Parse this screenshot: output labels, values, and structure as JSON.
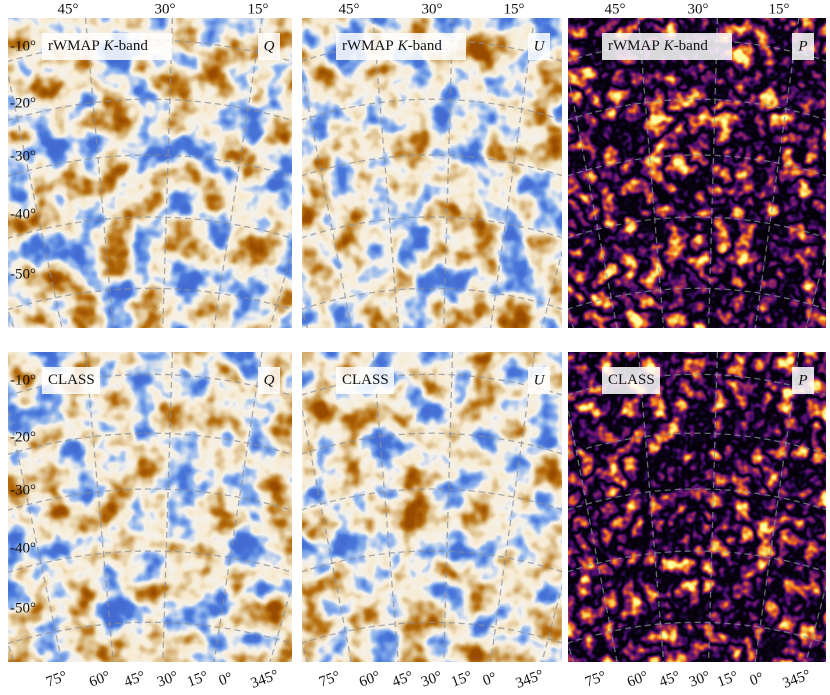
{
  "top_axis_labels": [
    "45°",
    "30°",
    "15°"
  ],
  "left_axis_labels": [
    "-10°",
    "-20°",
    "-30°",
    "-40°",
    "-50°"
  ],
  "bottom_axis_labels": [
    "75°",
    "60°",
    "45°",
    "30°",
    "15°",
    "0°",
    "345°"
  ],
  "panels": [
    {
      "source": "rWMAP",
      "band": "K",
      "band_suffix": "-band",
      "stokes": "Q"
    },
    {
      "source": "rWMAP",
      "band": "K",
      "band_suffix": "-band",
      "stokes": "U"
    },
    {
      "source": "rWMAP",
      "band": "K",
      "band_suffix": "-band",
      "stokes": "P"
    },
    {
      "source": "CLASS",
      "stokes": "Q"
    },
    {
      "source": "CLASS",
      "stokes": "U"
    },
    {
      "source": "CLASS",
      "stokes": "P"
    }
  ]
}
